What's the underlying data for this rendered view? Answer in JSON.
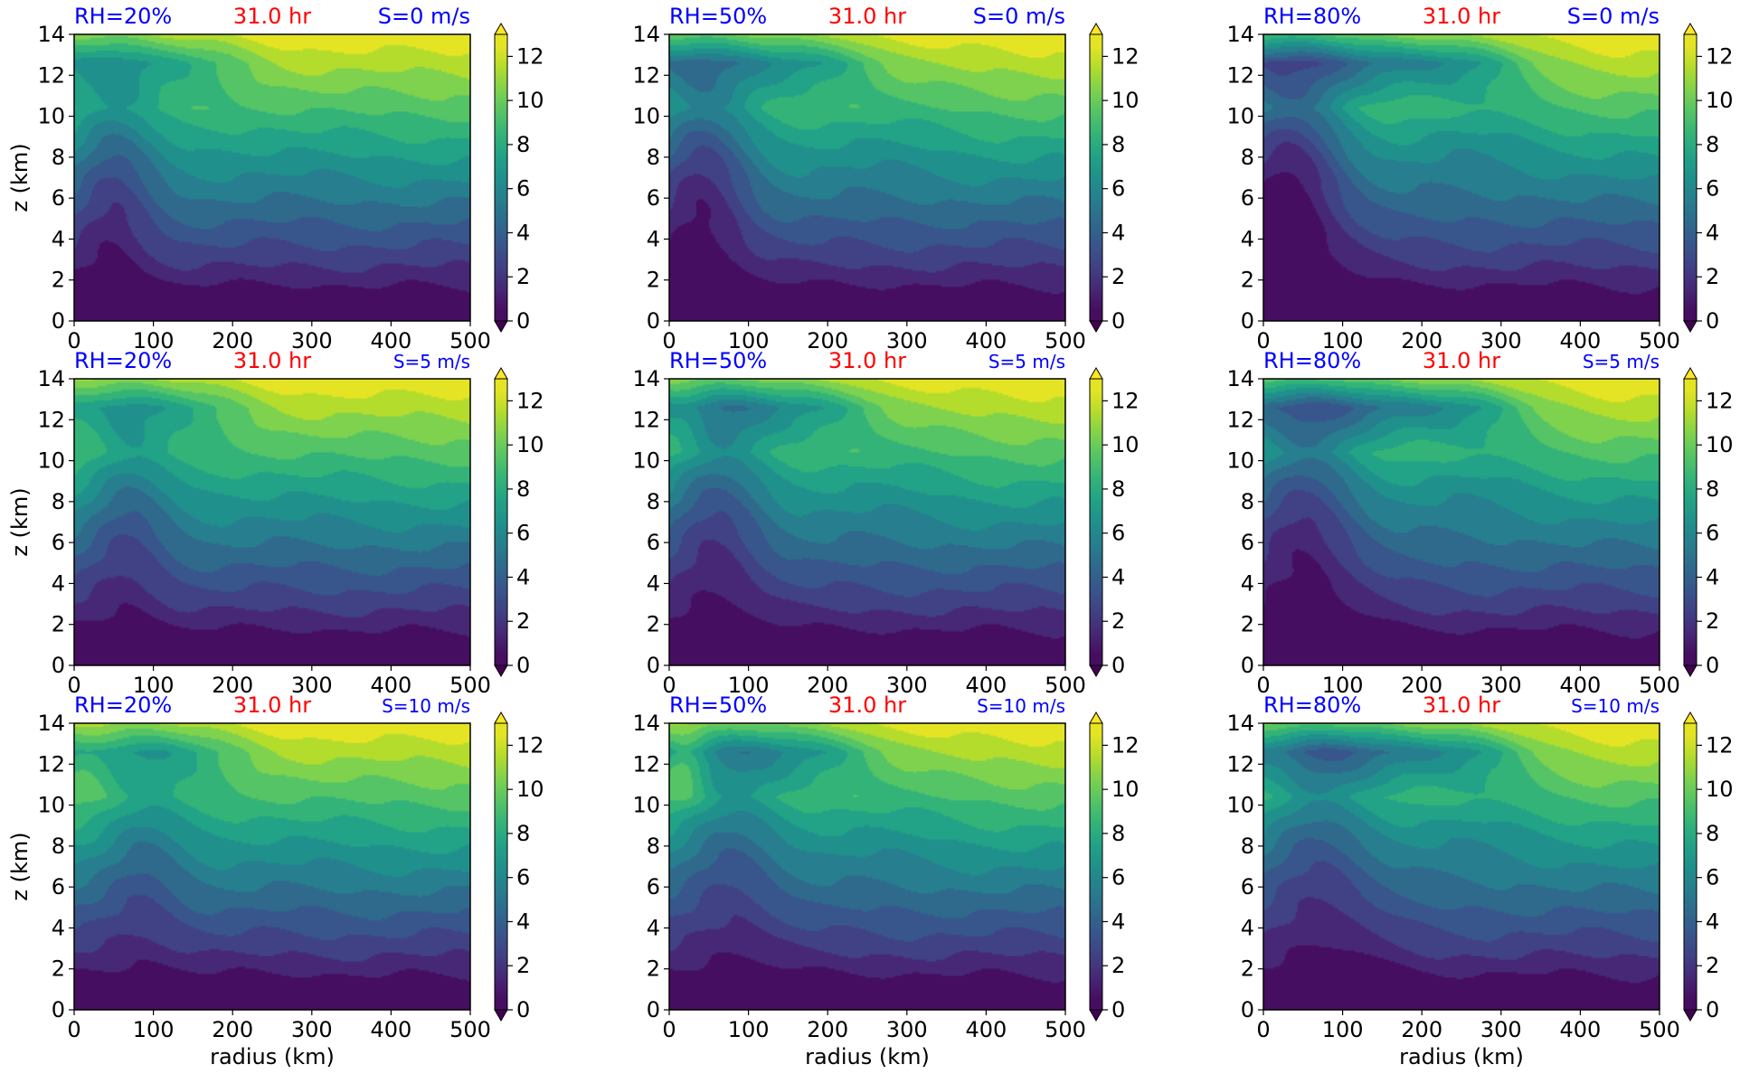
{
  "chart_data": {
    "type": "heatmap",
    "colormap": "viridis",
    "xlabel": "radius (km)",
    "ylabel": "z (km)",
    "xlim": [
      0,
      500
    ],
    "ylim": [
      0,
      14
    ],
    "xticks": [
      0,
      100,
      200,
      300,
      400,
      500
    ],
    "yticks": [
      0,
      2,
      4,
      6,
      8,
      10,
      12,
      14
    ],
    "colorbar": {
      "min": 0,
      "max": 13,
      "extend": "both",
      "ticks": [
        0,
        2,
        4,
        6,
        8,
        10,
        12
      ],
      "levels": [
        0,
        1,
        2,
        3,
        4,
        5,
        6,
        7,
        8,
        9,
        10,
        11,
        12,
        13
      ]
    },
    "time_label": "31.0 hr",
    "colors": {
      "rh_label": "#0000ff",
      "time_label": "#ff0000",
      "shear_label": "#0000ff"
    },
    "rows": [
      {
        "shear_label": "S=0 m/s"
      },
      {
        "shear_label": "S=5 m/s"
      },
      {
        "shear_label": "S=10 m/s"
      }
    ],
    "columns": [
      {
        "rh_label": "RH=20%"
      },
      {
        "rh_label": "RH=50%"
      },
      {
        "rh_label": "RH=80%"
      }
    ]
  }
}
